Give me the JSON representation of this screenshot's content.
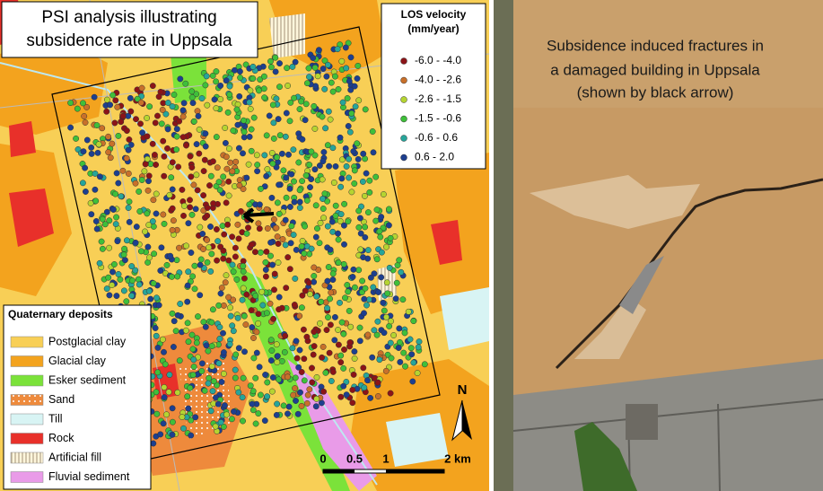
{
  "map_title": [
    "PSI analysis illustrating",
    "subsidence rate in Uppsala"
  ],
  "los_legend": {
    "title": [
      "LOS velocity",
      "(mm/year)"
    ],
    "items": [
      {
        "label": "-6.0 - -4.0",
        "color": "#8b1418"
      },
      {
        "label": "-4.0 - -2.6",
        "color": "#c8702a"
      },
      {
        "label": "-2.6 - -1.5",
        "color": "#b5d431"
      },
      {
        "label": "-1.5 - -0.6",
        "color": "#3fbf3a"
      },
      {
        "label": "-0.6 - 0.6",
        "color": "#27a59a"
      },
      {
        "label": "0.6 - 2.0",
        "color": "#1d3f8f"
      }
    ]
  },
  "deposits_legend": {
    "title": "Quaternary deposits",
    "items": [
      {
        "label": "Postglacial clay",
        "color": "#f8cf56"
      },
      {
        "label": "Glacial clay",
        "color": "#f3a31e"
      },
      {
        "label": "Esker sediment",
        "color": "#7be23a"
      },
      {
        "label": "Sand",
        "color": "#ee8a3c"
      },
      {
        "label": "Till",
        "color": "#d8f4f4"
      },
      {
        "label": "Rock",
        "color": "#e8302a"
      },
      {
        "label": "Artificial fill",
        "color": "#fff6dc"
      },
      {
        "label": "Fluvial sediment",
        "color": "#e99be8"
      }
    ]
  },
  "north_label": "N",
  "scale_labels": [
    "0",
    "0.5",
    "1",
    "2 km"
  ],
  "photo_caption": [
    "Subsidence induced fractures in",
    "a damaged building in Uppsala",
    "(shown by black arrow)"
  ]
}
